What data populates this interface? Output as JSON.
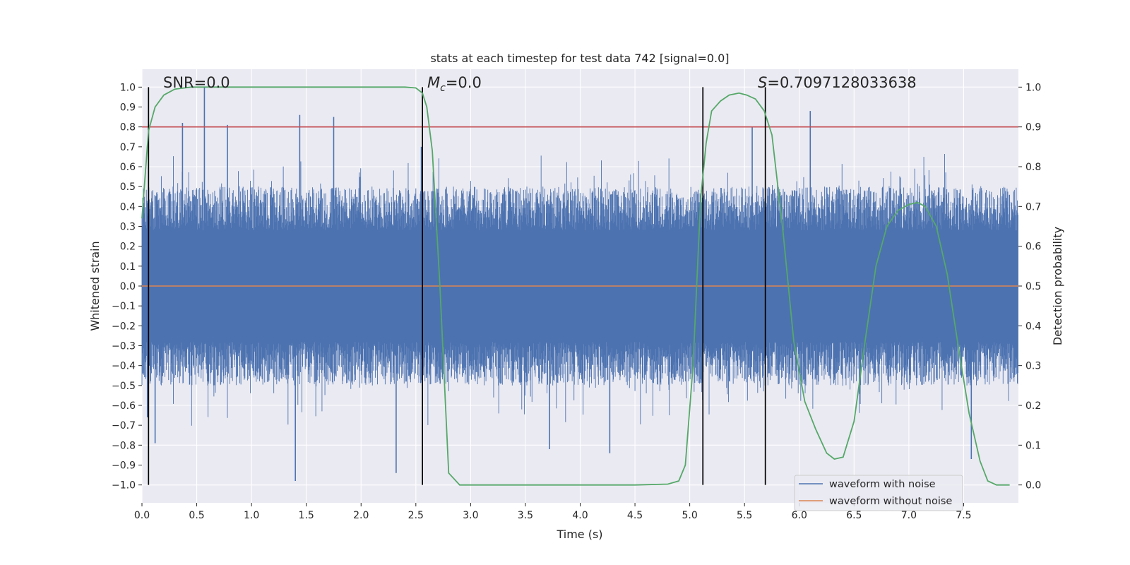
{
  "chart_data": {
    "type": "line",
    "title": "stats at each timestep for test data 742 [signal=0.0]",
    "xlabel": "Time (s)",
    "ylabel": "Whitened strain",
    "y2label": "Detection probability",
    "xlim": [
      0.0,
      8.0
    ],
    "ylim": [
      -1.09,
      1.09
    ],
    "y2lim": [
      -0.045,
      1.045
    ],
    "xticks": [
      "0.0",
      "0.5",
      "1.0",
      "1.5",
      "2.0",
      "2.5",
      "3.0",
      "3.5",
      "4.0",
      "4.5",
      "5.0",
      "5.5",
      "6.0",
      "6.5",
      "7.0",
      "7.5"
    ],
    "yticks": [
      "1.0",
      "0.9",
      "0.8",
      "0.7",
      "0.6",
      "0.5",
      "0.4",
      "0.3",
      "0.2",
      "0.1",
      "0.0",
      "−0.1",
      "−0.2",
      "−0.3",
      "−0.4",
      "−0.5",
      "−0.6",
      "−0.7",
      "−0.8",
      "−0.9",
      "−1.0"
    ],
    "y2ticks": [
      "1.0",
      "0.9",
      "0.8",
      "0.7",
      "0.6",
      "0.5",
      "0.4",
      "0.3",
      "0.2",
      "0.1",
      "0.0"
    ],
    "annotations": {
      "snr": "SNR=0.0",
      "mc_symbol": "M",
      "mc_sub": "c",
      "mc_value": "=0.0",
      "s_symbol": "S",
      "s_value": "=0.7097128033638"
    },
    "threshold": {
      "value": 0.9,
      "color": "#c44e52"
    },
    "vertical_markers": [
      0.06,
      2.56,
      5.12,
      5.69
    ],
    "series": [
      {
        "name": "waveform with noise",
        "color": "#4c72b0",
        "envelope_pos_mean": 0.45,
        "envelope_neg_mean": -0.46,
        "peaks": [
          {
            "x": 0.37,
            "y": 0.82
          },
          {
            "x": 0.57,
            "y": 1.0
          },
          {
            "x": 0.78,
            "y": 0.81
          },
          {
            "x": 1.44,
            "y": 0.86
          },
          {
            "x": 1.75,
            "y": 0.85
          },
          {
            "x": 2.55,
            "y": 0.7
          },
          {
            "x": 6.1,
            "y": 0.88
          },
          {
            "x": 5.57,
            "y": 0.8
          },
          {
            "x": 1.4,
            "y": -0.98
          },
          {
            "x": 2.32,
            "y": -0.94
          },
          {
            "x": 0.12,
            "y": -0.79
          },
          {
            "x": 4.27,
            "y": -0.84
          },
          {
            "x": 3.72,
            "y": -0.82
          },
          {
            "x": 7.57,
            "y": -0.87
          },
          {
            "x": 0.05,
            "y": -0.66
          }
        ]
      },
      {
        "name": "waveform without noise",
        "color": "#dd8452",
        "values": [
          0.0
        ]
      },
      {
        "name": "detection probability",
        "color": "#55a868",
        "axis": "right",
        "x": [
          0.0,
          0.06,
          0.12,
          0.2,
          0.3,
          0.45,
          0.8,
          1.5,
          2.0,
          2.4,
          2.5,
          2.56,
          2.6,
          2.65,
          2.72,
          2.8,
          2.9,
          3.5,
          4.5,
          4.8,
          4.9,
          4.96,
          5.03,
          5.1,
          5.15,
          5.2,
          5.28,
          5.36,
          5.45,
          5.52,
          5.6,
          5.68,
          5.75,
          5.85,
          5.95,
          6.05,
          6.15,
          6.25,
          6.32,
          6.4,
          6.5,
          6.6,
          6.7,
          6.8,
          6.9,
          7.0,
          7.08,
          7.15,
          7.25,
          7.35,
          7.45,
          7.55,
          7.65,
          7.72,
          7.8,
          7.92
        ],
        "values": [
          0.67,
          0.89,
          0.95,
          0.98,
          0.995,
          1.0,
          1.0,
          1.0,
          1.0,
          1.0,
          0.998,
          0.985,
          0.95,
          0.84,
          0.5,
          0.03,
          0.0,
          0.0,
          0.0,
          0.002,
          0.01,
          0.05,
          0.3,
          0.72,
          0.86,
          0.94,
          0.965,
          0.98,
          0.985,
          0.98,
          0.97,
          0.94,
          0.88,
          0.64,
          0.36,
          0.21,
          0.14,
          0.08,
          0.065,
          0.07,
          0.16,
          0.36,
          0.55,
          0.65,
          0.69,
          0.705,
          0.71,
          0.7,
          0.65,
          0.53,
          0.35,
          0.18,
          0.06,
          0.01,
          0.0,
          0.0
        ]
      }
    ],
    "legend_position": "lower-right",
    "grid": true
  }
}
